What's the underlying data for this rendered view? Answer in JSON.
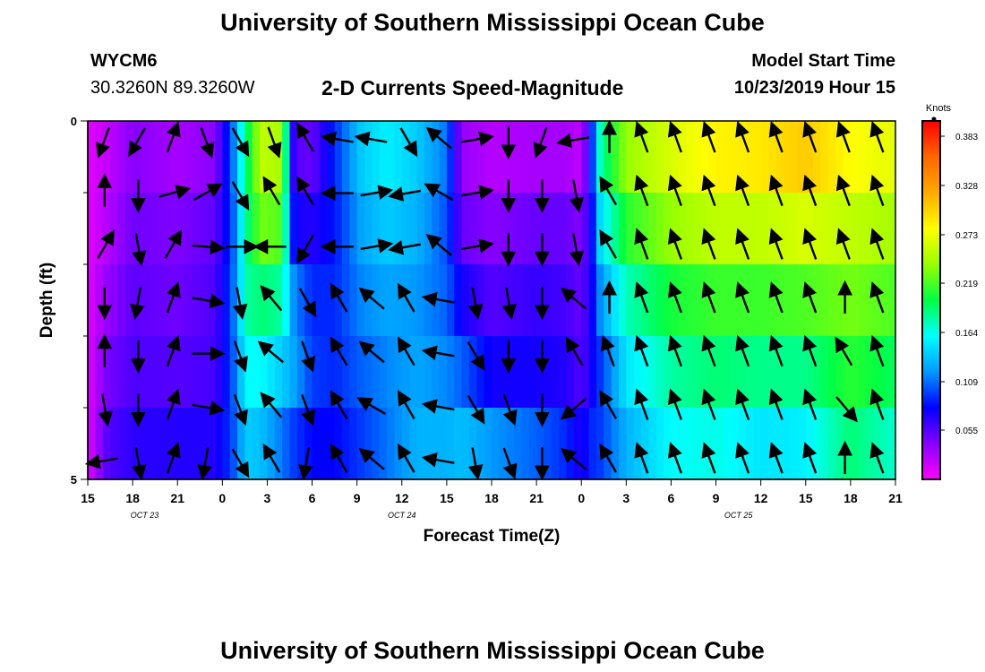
{
  "header": {
    "title": "University of Southern Mississippi Ocean Cube",
    "station": "WYCM6",
    "coords": "30.3260N 89.3260W",
    "subtitle": "2-D Currents Speed-Magnitude",
    "model_label": "Model Start Time",
    "model_time": "10/23/2019 Hour 15",
    "footer_title": "University of Southern Mississippi Ocean Cube"
  },
  "chart_data": {
    "type": "heatmap",
    "title": "2-D Currents Speed-Magnitude",
    "xlabel": "Forecast Time(Z)",
    "ylabel": "Depth (ft)",
    "xlim_hours": [
      0,
      54
    ],
    "ylim": [
      0,
      5
    ],
    "y_ticks": [
      "0",
      "5"
    ],
    "x_ticks": [
      "15",
      "18",
      "21",
      "0",
      "3",
      "6",
      "9",
      "12",
      "15",
      "18",
      "21",
      "0",
      "3",
      "6",
      "9",
      "12",
      "15",
      "18",
      "21"
    ],
    "date_labels": [
      {
        "label": "OCT 23",
        "at_hour": 3.8
      },
      {
        "label": "OCT 24",
        "at_hour": 21
      },
      {
        "label": "OCT 25",
        "at_hour": 43.5
      }
    ],
    "colorbar": {
      "unit": "Knots",
      "ticks": [
        "0.383",
        "0.328",
        "0.273",
        "0.219",
        "0.164",
        "0.109",
        "0.055"
      ],
      "tick_values": [
        0.383,
        0.328,
        0.273,
        0.219,
        0.164,
        0.109,
        0.055
      ],
      "range": [
        0,
        0.4
      ],
      "colormap": [
        "#ff00ff",
        "#8800ff",
        "#0000ff",
        "#0099ff",
        "#00ffff",
        "#00ff44",
        "#99ff00",
        "#ffff00",
        "#ffaa00",
        "#ff6600",
        "#ff0000"
      ]
    },
    "depth_layers": [
      0,
      1,
      2,
      3,
      4,
      5
    ],
    "speed_keyframes": [
      {
        "h": 0,
        "v": [
          0.01,
          0.01,
          0.01,
          0.01,
          0.01,
          0.01
        ]
      },
      {
        "h": 1.3,
        "v": [
          0.02,
          0.02,
          0.03,
          0.04,
          0.05,
          0.06
        ]
      },
      {
        "h": 3,
        "v": [
          0.035,
          0.045,
          0.05,
          0.055,
          0.06,
          0.075
        ]
      },
      {
        "h": 6,
        "v": [
          0.02,
          0.04,
          0.045,
          0.05,
          0.06,
          0.08
        ]
      },
      {
        "h": 8.5,
        "v": [
          0.03,
          0.05,
          0.055,
          0.06,
          0.06,
          0.08
        ]
      },
      {
        "h": 9.6,
        "v": [
          0.11,
          0.09,
          0.095,
          0.1,
          0.09,
          0.1
        ]
      },
      {
        "h": 10.6,
        "v": [
          0.2,
          0.18,
          0.19,
          0.17,
          0.15,
          0.13
        ]
      },
      {
        "h": 11.6,
        "v": [
          0.26,
          0.25,
          0.21,
          0.17,
          0.15,
          0.12
        ]
      },
      {
        "h": 13,
        "v": [
          0.25,
          0.24,
          0.2,
          0.16,
          0.12,
          0.1
        ]
      },
      {
        "h": 13.8,
        "v": [
          0.05,
          0.06,
          0.09,
          0.14,
          0.11,
          0.08
        ]
      },
      {
        "h": 15,
        "v": [
          0.04,
          0.06,
          0.08,
          0.1,
          0.09,
          0.07
        ]
      },
      {
        "h": 16.5,
        "v": [
          0.1,
          0.08,
          0.09,
          0.09,
          0.09,
          0.07
        ]
      },
      {
        "h": 18.3,
        "v": [
          0.15,
          0.13,
          0.12,
          0.11,
          0.1,
          0.09
        ]
      },
      {
        "h": 20,
        "v": [
          0.16,
          0.15,
          0.13,
          0.12,
          0.11,
          0.11
        ]
      },
      {
        "h": 22,
        "v": [
          0.14,
          0.14,
          0.12,
          0.12,
          0.13,
          0.13
        ]
      },
      {
        "h": 24,
        "v": [
          0.12,
          0.1,
          0.1,
          0.11,
          0.12,
          0.14
        ]
      },
      {
        "h": 25,
        "v": [
          0.03,
          0.04,
          0.06,
          0.09,
          0.12,
          0.15
        ]
      },
      {
        "h": 27,
        "v": [
          0.02,
          0.03,
          0.05,
          0.06,
          0.09,
          0.15
        ]
      },
      {
        "h": 30,
        "v": [
          0.02,
          0.04,
          0.06,
          0.07,
          0.08,
          0.13
        ]
      },
      {
        "h": 32,
        "v": [
          0.02,
          0.04,
          0.06,
          0.06,
          0.08,
          0.1
        ]
      },
      {
        "h": 33,
        "v": [
          0.01,
          0.03,
          0.05,
          0.05,
          0.06,
          0.08
        ]
      },
      {
        "h": 33.7,
        "v": [
          0.1,
          0.08,
          0.08,
          0.07,
          0.08,
          0.1
        ]
      },
      {
        "h": 34.3,
        "v": [
          0.2,
          0.16,
          0.14,
          0.1,
          0.09,
          0.1
        ]
      },
      {
        "h": 36,
        "v": [
          0.25,
          0.23,
          0.19,
          0.16,
          0.14,
          0.12
        ]
      },
      {
        "h": 39,
        "v": [
          0.27,
          0.26,
          0.22,
          0.19,
          0.17,
          0.15
        ]
      },
      {
        "h": 42,
        "v": [
          0.29,
          0.28,
          0.23,
          0.2,
          0.18,
          0.15
        ]
      },
      {
        "h": 45,
        "v": [
          0.3,
          0.28,
          0.23,
          0.2,
          0.17,
          0.13
        ]
      },
      {
        "h": 48,
        "v": [
          0.32,
          0.29,
          0.24,
          0.2,
          0.17,
          0.14
        ]
      },
      {
        "h": 51,
        "v": [
          0.29,
          0.27,
          0.24,
          0.22,
          0.2,
          0.18
        ]
      },
      {
        "h": 54,
        "v": [
          0.28,
          0.26,
          0.23,
          0.21,
          0.18,
          0.16
        ]
      }
    ],
    "current_arrows_deg": [
      [
        200,
        0,
        30,
        180,
        0,
        170,
        -100
      ],
      [
        210,
        180,
        170,
        190,
        180,
        180,
        170
      ],
      [
        20,
        75,
        30,
        20,
        20,
        20,
        20
      ],
      [
        160,
        60,
        95,
        100,
        90,
        100,
        190
      ],
      [
        150,
        150,
        90,
        170,
        160,
        160,
        150
      ],
      [
        160,
        -30,
        270,
        320,
        310,
        320,
        330
      ],
      [
        -30,
        -30,
        210,
        150,
        160,
        160,
        190
      ],
      [
        -80,
        -90,
        -90,
        -30,
        -30,
        -30,
        -30
      ],
      [
        -80,
        80,
        80,
        -50,
        -50,
        -60,
        -50
      ],
      [
        150,
        260,
        260,
        -30,
        -30,
        -30,
        -30
      ],
      [
        -50,
        -60,
        -50,
        -80,
        -80,
        -80,
        -80
      ],
      [
        80,
        80,
        80,
        170,
        150,
        150,
        170
      ],
      [
        180,
        180,
        180,
        170,
        180,
        160,
        160
      ],
      [
        200,
        180,
        180,
        180,
        180,
        180,
        180
      ],
      [
        -100,
        170,
        170,
        -50,
        -30,
        230,
        -50
      ],
      [
        0,
        -30,
        -30,
        0,
        -20,
        -30,
        -30
      ],
      [
        -20,
        -20,
        -20,
        -20,
        -20,
        -20,
        -20
      ],
      [
        -20,
        -20,
        -20,
        -20,
        -20,
        -20,
        -20
      ],
      [
        -20,
        -20,
        -20,
        -20,
        -20,
        -20,
        -20
      ],
      [
        -20,
        -20,
        -20,
        -20,
        -20,
        -20,
        -20
      ],
      [
        -20,
        -20,
        -20,
        -20,
        -20,
        -20,
        -20
      ],
      [
        -20,
        -20,
        -20,
        -20,
        -20,
        -20,
        -20
      ],
      [
        -20,
        -20,
        -20,
        0,
        -30,
        140,
        0
      ],
      [
        -20,
        -20,
        -20,
        -20,
        -20,
        -20,
        -20
      ]
    ]
  }
}
